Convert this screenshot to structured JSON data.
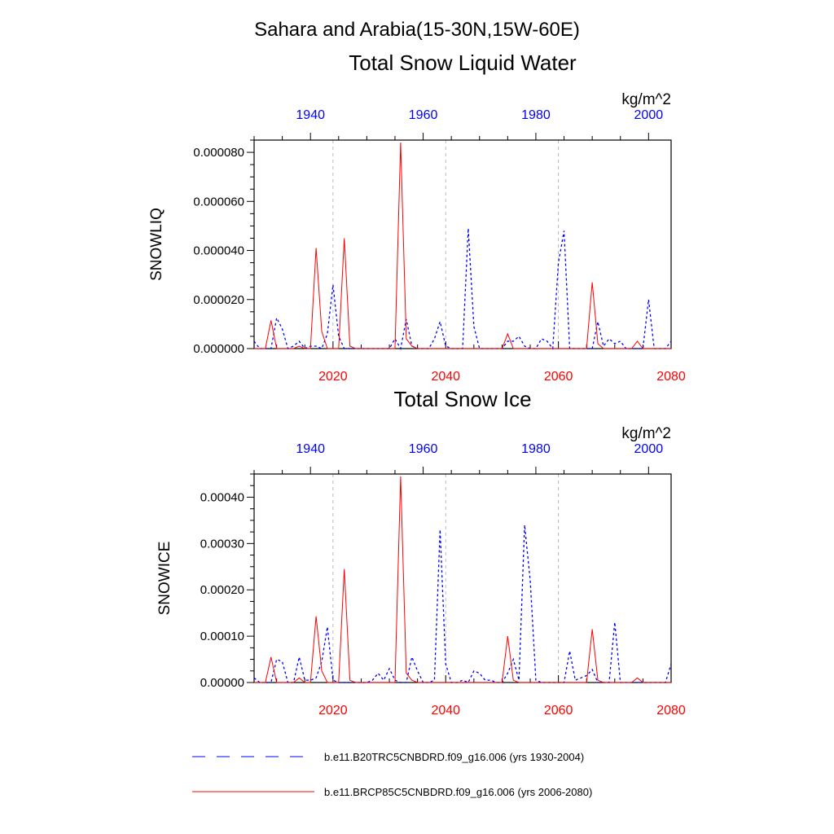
{
  "page_title": "Sahara and Arabia(15-30N,15W-60E)",
  "legend": [
    {
      "label": "b.e11.B20TRC5CNBDRD.f09_g16.006 (yrs 1930-2004)",
      "color": "#0000ff",
      "dash": "dashed"
    },
    {
      "label": "b.e11.BRCP85C5CNBDRD.f09_g16.006 (yrs 2006-2080)",
      "color": "#ff0000",
      "dash": "solid"
    }
  ],
  "chart_data": [
    {
      "type": "line",
      "title": "Total Snow Liquid Water",
      "units": "kg/m^2",
      "ylabel": "SNOWLIQ",
      "ylim": [
        0,
        8.5e-05
      ],
      "yticks": [
        0,
        2e-05,
        4e-05,
        6e-05,
        8e-05
      ],
      "ytick_labels": [
        "0.000000",
        "0.000020",
        "0.000040",
        "0.000060",
        "0.000080"
      ],
      "x_bottom": {
        "range": [
          2006,
          2080
        ],
        "ticks": [
          2020,
          2040,
          2060,
          2080
        ],
        "color": "#ff0000"
      },
      "x_top": {
        "range": [
          1930,
          2004
        ],
        "ticks": [
          1940,
          1960,
          1980,
          2000
        ],
        "color": "#0000ff"
      },
      "grid": "vertical dashed at 2020, 2040, 2060",
      "series": [
        {
          "name": "b.e11.B20TRC5CNBDRD.f09_g16.006 (yrs 1930-2004)",
          "axis": "top",
          "color": "#0000ff",
          "dash": "dashed",
          "x": [
            1930,
            1931,
            1932,
            1933,
            1934,
            1935,
            1936,
            1937,
            1938,
            1939,
            1940,
            1941,
            1942,
            1943,
            1944,
            1945,
            1946,
            1947,
            1948,
            1949,
            1950,
            1951,
            1952,
            1953,
            1954,
            1955,
            1956,
            1957,
            1958,
            1959,
            1960,
            1961,
            1962,
            1963,
            1964,
            1965,
            1966,
            1967,
            1968,
            1969,
            1970,
            1971,
            1972,
            1973,
            1974,
            1975,
            1976,
            1977,
            1978,
            1979,
            1980,
            1981,
            1982,
            1983,
            1984,
            1985,
            1986,
            1987,
            1988,
            1989,
            1990,
            1991,
            1992,
            1993,
            1994,
            1995,
            1996,
            1997,
            1998,
            1999,
            2000,
            2001,
            2002,
            2003,
            2004
          ],
          "y": [
            3e-06,
            0,
            0,
            0,
            1.25e-05,
            8e-06,
            0,
            1e-06,
            3e-06,
            0,
            1e-06,
            1e-06,
            0,
            6e-06,
            2.6e-05,
            5e-06,
            0,
            0,
            0,
            0,
            0,
            0,
            0,
            0,
            0,
            4e-06,
            0,
            1.2e-05,
            1e-06,
            0,
            0,
            0,
            4e-06,
            1.1e-05,
            1e-06,
            0,
            0,
            0,
            4.9e-05,
            9e-06,
            0,
            0,
            0,
            0,
            0,
            3e-06,
            3e-06,
            5e-06,
            1e-06,
            0,
            0,
            4e-06,
            3e-06,
            0,
            3.5e-05,
            4.8e-05,
            0,
            0,
            0,
            0,
            0,
            1.1e-05,
            1e-06,
            4e-06,
            2e-06,
            3e-06,
            0,
            0,
            0,
            0,
            2e-05,
            0,
            0,
            0,
            3e-06
          ]
        },
        {
          "name": "b.e11.BRCP85C5CNBDRD.f09_g16.006 (yrs 2006-2080)",
          "axis": "bottom",
          "color": "#ff0000",
          "dash": "solid",
          "x": [
            2006,
            2007,
            2008,
            2009,
            2010,
            2011,
            2012,
            2013,
            2014,
            2015,
            2016,
            2017,
            2018,
            2019,
            2020,
            2021,
            2022,
            2023,
            2024,
            2025,
            2026,
            2027,
            2028,
            2029,
            2030,
            2031,
            2032,
            2033,
            2034,
            2035,
            2036,
            2037,
            2038,
            2039,
            2040,
            2041,
            2042,
            2043,
            2044,
            2045,
            2046,
            2047,
            2048,
            2049,
            2050,
            2051,
            2052,
            2053,
            2054,
            2055,
            2056,
            2057,
            2058,
            2059,
            2060,
            2061,
            2062,
            2063,
            2064,
            2065,
            2066,
            2067,
            2068,
            2069,
            2070,
            2071,
            2072,
            2073,
            2074,
            2075,
            2076,
            2077,
            2078,
            2079,
            2080
          ],
          "y": [
            0,
            0,
            0,
            1.15e-05,
            0,
            0,
            0,
            0,
            1e-06,
            0,
            0,
            4.1e-05,
            7e-06,
            0,
            0,
            0,
            4.5e-05,
            1e-06,
            0,
            0,
            0,
            0,
            0,
            0,
            0,
            0,
            8.4e-05,
            4e-06,
            1e-06,
            0,
            0,
            0,
            0,
            0,
            0,
            0,
            0,
            0,
            0,
            0,
            0,
            0,
            0,
            0,
            0,
            6e-06,
            0,
            0,
            0,
            0,
            0,
            0,
            0,
            0,
            0,
            0,
            0,
            0,
            0,
            0,
            2.7e-05,
            2e-06,
            0,
            0,
            0,
            0,
            0,
            0,
            3e-06,
            0,
            0,
            0,
            0,
            0,
            0
          ]
        }
      ]
    },
    {
      "type": "line",
      "title": "Total Snow Ice",
      "units": "kg/m^2",
      "ylabel": "SNOWICE",
      "ylim": [
        0,
        0.00045
      ],
      "yticks": [
        0,
        0.0001,
        0.0002,
        0.0003,
        0.0004
      ],
      "ytick_labels": [
        "0.00000",
        "0.00010",
        "0.00020",
        "0.00030",
        "0.00040"
      ],
      "x_bottom": {
        "range": [
          2006,
          2080
        ],
        "ticks": [
          2020,
          2040,
          2060,
          2080
        ],
        "color": "#ff0000"
      },
      "x_top": {
        "range": [
          1930,
          2004
        ],
        "ticks": [
          1940,
          1960,
          1980,
          2000
        ],
        "color": "#0000ff"
      },
      "grid": "vertical dashed at 2020, 2040, 2060",
      "series": [
        {
          "name": "b.e11.B20TRC5CNBDRD.f09_g16.006 (yrs 1930-2004)",
          "axis": "top",
          "color": "#0000ff",
          "dash": "dashed",
          "x": [
            1930,
            1931,
            1932,
            1933,
            1934,
            1935,
            1936,
            1937,
            1938,
            1939,
            1940,
            1941,
            1942,
            1943,
            1944,
            1945,
            1946,
            1947,
            1948,
            1949,
            1950,
            1951,
            1952,
            1953,
            1954,
            1955,
            1956,
            1957,
            1958,
            1959,
            1960,
            1961,
            1962,
            1963,
            1964,
            1965,
            1966,
            1967,
            1968,
            1969,
            1970,
            1971,
            1972,
            1973,
            1974,
            1975,
            1976,
            1977,
            1978,
            1979,
            1980,
            1981,
            1982,
            1983,
            1984,
            1985,
            1986,
            1987,
            1988,
            1989,
            1990,
            1991,
            1992,
            1993,
            1994,
            1995,
            1996,
            1997,
            1998,
            1999,
            2000,
            2001,
            2002,
            2003,
            2004
          ],
          "y": [
            1e-05,
            0,
            0,
            0,
            5e-05,
            4.5e-05,
            0,
            0,
            5.5e-05,
            5e-06,
            5e-06,
            1e-05,
            4.5e-05,
            0.00012,
            5e-06,
            0,
            0,
            0,
            0,
            0,
            0,
            5e-06,
            2e-05,
            5e-06,
            3e-05,
            5e-06,
            0,
            0,
            5.5e-05,
            2.5e-05,
            0,
            0,
            5e-06,
            0.00033,
            4e-05,
            0,
            0,
            5e-06,
            0,
            2.5e-05,
            2e-05,
            5e-06,
            5e-06,
            0,
            0,
            2e-05,
            5e-05,
            5e-06,
            0.00034,
            0.00022,
            5e-06,
            0,
            0,
            0,
            0,
            0,
            6.8e-05,
            5e-06,
            1e-05,
            1.5e-05,
            2.8e-05,
            0,
            0,
            0,
            0.00013,
            0,
            0,
            0,
            0,
            0,
            0,
            0,
            0,
            0,
            4e-05
          ]
        },
        {
          "name": "b.e11.BRCP85C5CNBDRD.f09_g16.006 (yrs 2006-2080)",
          "axis": "bottom",
          "color": "#ff0000",
          "dash": "solid",
          "x": [
            2006,
            2007,
            2008,
            2009,
            2010,
            2011,
            2012,
            2013,
            2014,
            2015,
            2016,
            2017,
            2018,
            2019,
            2020,
            2021,
            2022,
            2023,
            2024,
            2025,
            2026,
            2027,
            2028,
            2029,
            2030,
            2031,
            2032,
            2033,
            2034,
            2035,
            2036,
            2037,
            2038,
            2039,
            2040,
            2041,
            2042,
            2043,
            2044,
            2045,
            2046,
            2047,
            2048,
            2049,
            2050,
            2051,
            2052,
            2053,
            2054,
            2055,
            2056,
            2057,
            2058,
            2059,
            2060,
            2061,
            2062,
            2063,
            2064,
            2065,
            2066,
            2067,
            2068,
            2069,
            2070,
            2071,
            2072,
            2073,
            2074,
            2075,
            2076,
            2077,
            2078,
            2079,
            2080
          ],
          "y": [
            0,
            0,
            0,
            5.5e-05,
            0,
            0,
            0,
            0,
            1e-05,
            0,
            0,
            0.000143,
            2.5e-05,
            0,
            0,
            0,
            0.000245,
            5e-06,
            0,
            0,
            0,
            0,
            0,
            0,
            0,
            0,
            0.000445,
            2e-05,
            5e-06,
            0,
            0,
            0,
            0,
            0,
            0,
            0,
            0,
            0,
            0,
            0,
            0,
            0,
            0,
            0,
            0,
            0.0001,
            5e-06,
            0,
            0,
            0,
            0,
            0,
            0,
            0,
            0,
            0,
            0,
            0,
            0,
            0,
            0.000115,
            5e-06,
            0,
            0,
            0,
            0,
            0,
            0,
            1e-05,
            0,
            0,
            0,
            0,
            0,
            0
          ]
        }
      ]
    }
  ]
}
